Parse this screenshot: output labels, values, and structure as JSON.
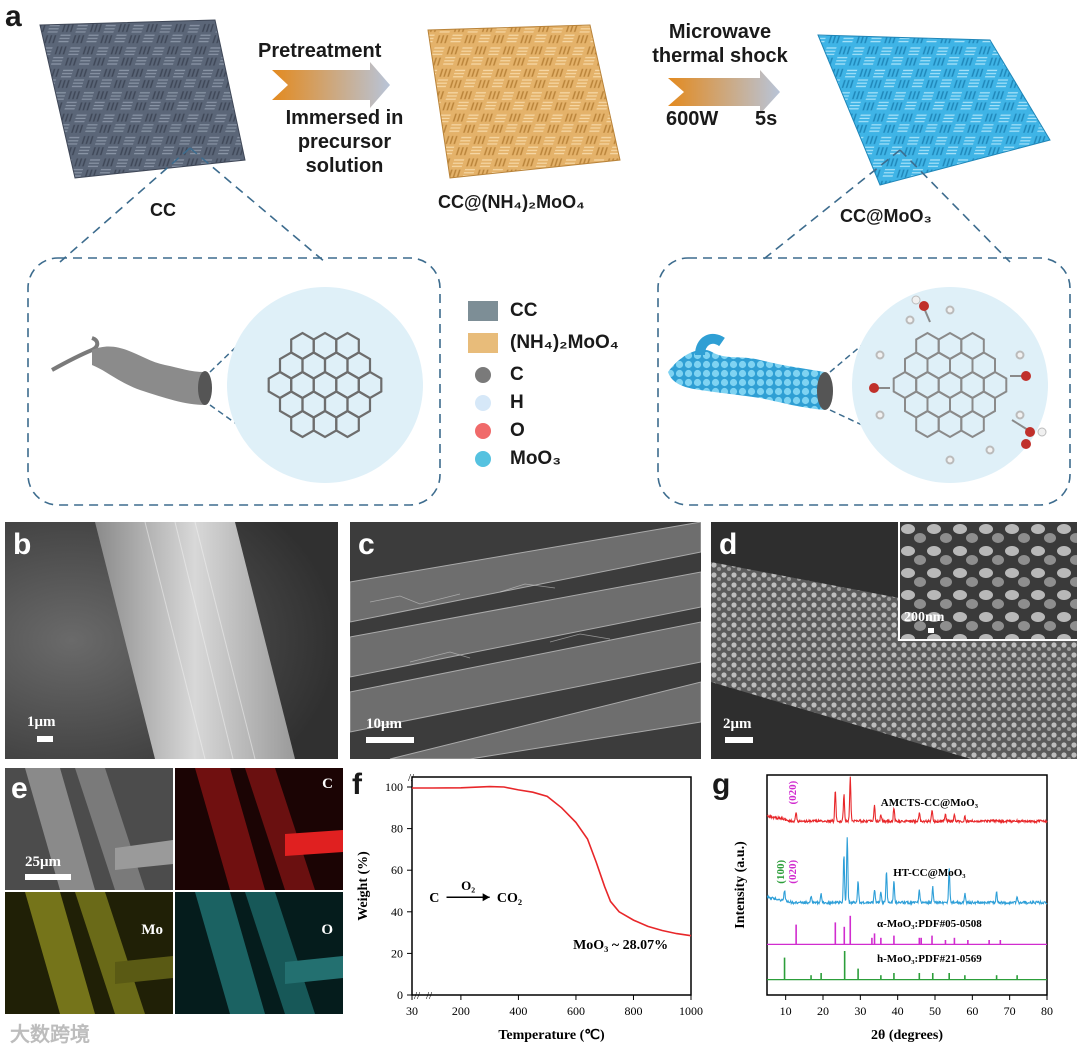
{
  "panel_a": {
    "letter": "a",
    "step1_top": "Pretreatment",
    "step1_bottom": [
      "Immersed in",
      "precursor",
      "solution"
    ],
    "step2_top": [
      "Microwave",
      "thermal shock"
    ],
    "step2_power": "600W",
    "step2_time": "5s",
    "label_cc": "CC",
    "label_precursor": "CC@(NH₄)₂MoO₄",
    "label_product": "CC@MoO₃",
    "legend": [
      {
        "label": "CC",
        "color": "#7d8e96",
        "shape": "square"
      },
      {
        "label": "(NH₄)₂MoO₄",
        "color": "#e8bc7a",
        "shape": "square"
      },
      {
        "label": "C",
        "color": "#7a7a7a",
        "shape": "circle"
      },
      {
        "label": "H",
        "color": "#d6e8f8",
        "shape": "circle"
      },
      {
        "label": "O",
        "color": "#f06a6a",
        "shape": "circle"
      },
      {
        "label": "MoO₃",
        "color": "#55c2e0",
        "shape": "circle"
      }
    ],
    "colors": {
      "cc": "#5b6678",
      "precursor": "#e4b26a",
      "product": "#3fb4e6",
      "circle_bg": "#dff0f8"
    }
  },
  "panel_b": {
    "letter": "b",
    "scale": "1μm"
  },
  "panel_c": {
    "letter": "c",
    "scale": "10μm"
  },
  "panel_d": {
    "letter": "d",
    "scale": "2μm",
    "inset_scale": "200nm"
  },
  "panel_e": {
    "letter": "e",
    "scale": "25μm",
    "maps": [
      "C",
      "Mo",
      "O"
    ]
  },
  "panel_f": {
    "letter": "f"
  },
  "panel_g": {
    "letter": "g"
  },
  "watermark": "大数跨境",
  "chart_data": [
    {
      "type": "line",
      "panel": "f",
      "xlabel": "Temperature (℃)",
      "ylabel": "Weight (%)",
      "xlim": [
        30,
        1000
      ],
      "ylim": [
        0,
        100
      ],
      "xticks": [
        30,
        200,
        400,
        600,
        800,
        1000
      ],
      "yticks": [
        0,
        20,
        40,
        60,
        80,
        100
      ],
      "axis_break": true,
      "series": [
        {
          "color": "#e8272a",
          "x": [
            30,
            100,
            200,
            300,
            350,
            400,
            450,
            500,
            550,
            600,
            640,
            670,
            700,
            720,
            750,
            800,
            850,
            900,
            950,
            1000
          ],
          "y": [
            99.5,
            99.5,
            99.6,
            100.2,
            100.0,
            98.6,
            97.5,
            95.5,
            90.0,
            83.0,
            75.0,
            64.0,
            52.0,
            45.0,
            40.0,
            36.0,
            33.0,
            31.0,
            29.5,
            28.5
          ]
        }
      ],
      "reaction": {
        "reactant": "C",
        "reagent": "O₂",
        "product": "CO₂"
      },
      "annotation": "MoO₃ ~ 28.07%"
    },
    {
      "type": "line",
      "panel": "g",
      "xlabel": "2θ (degrees)",
      "ylabel": "Intensity (a.u.)",
      "xlim": [
        5,
        80
      ],
      "xticks": [
        10,
        20,
        30,
        40,
        50,
        60,
        70,
        80
      ],
      "series": [
        {
          "name": "AMCTS-CC@MoO₃",
          "color": "#e8272a",
          "kind": "pattern",
          "baseline": 79,
          "peaks": [
            [
              12.8,
              4
            ],
            [
              23.3,
              14
            ],
            [
              25.6,
              12
            ],
            [
              27.3,
              20
            ],
            [
              33.8,
              7
            ],
            [
              35.5,
              3
            ],
            [
              39.0,
              6
            ],
            [
              45.8,
              4
            ],
            [
              49.2,
              5
            ],
            [
              52.8,
              3
            ],
            [
              55.2,
              3
            ],
            [
              58.0,
              2
            ]
          ],
          "annotations": [
            "(020)"
          ]
        },
        {
          "name": "HT-CC@MoO₃",
          "color": "#2e9fd8",
          "kind": "pattern",
          "baseline": 42,
          "peaks": [
            [
              9.7,
              5
            ],
            [
              16.8,
              3
            ],
            [
              19.5,
              4
            ],
            [
              25.6,
              22
            ],
            [
              26.5,
              30
            ],
            [
              29.4,
              10
            ],
            [
              33.8,
              6
            ],
            [
              35.5,
              5
            ],
            [
              37.0,
              14
            ],
            [
              39.0,
              10
            ],
            [
              45.8,
              6
            ],
            [
              49.4,
              7
            ],
            [
              53.8,
              16
            ],
            [
              58.0,
              4
            ],
            [
              66.5,
              5
            ],
            [
              72.0,
              3
            ]
          ],
          "annotations": [
            "(100)",
            "(020)"
          ]
        },
        {
          "name": "α-MoO₃:PDF#05-0508",
          "color": "#d12ccf",
          "kind": "sticks",
          "baseline": 23,
          "peaks": [
            [
              12.8,
              9
            ],
            [
              23.3,
              10
            ],
            [
              25.7,
              8
            ],
            [
              27.3,
              13
            ],
            [
              33.1,
              3
            ],
            [
              33.8,
              5
            ],
            [
              35.5,
              3
            ],
            [
              39.0,
              4
            ],
            [
              45.8,
              3
            ],
            [
              46.3,
              3
            ],
            [
              49.2,
              4
            ],
            [
              52.8,
              2
            ],
            [
              55.2,
              3
            ],
            [
              58.8,
              2
            ],
            [
              64.5,
              2
            ],
            [
              67.5,
              2
            ]
          ]
        },
        {
          "name": "h-MoO₃:PDF#21-0569",
          "color": "#2c9e3a",
          "kind": "sticks",
          "baseline": 7,
          "peaks": [
            [
              9.7,
              10
            ],
            [
              16.8,
              2
            ],
            [
              19.5,
              3
            ],
            [
              25.8,
              13
            ],
            [
              29.4,
              5
            ],
            [
              35.5,
              2
            ],
            [
              39.0,
              3
            ],
            [
              45.8,
              3
            ],
            [
              49.4,
              3
            ],
            [
              53.8,
              3
            ],
            [
              58.0,
              2
            ],
            [
              66.5,
              2
            ],
            [
              72.0,
              2
            ]
          ]
        }
      ]
    }
  ]
}
